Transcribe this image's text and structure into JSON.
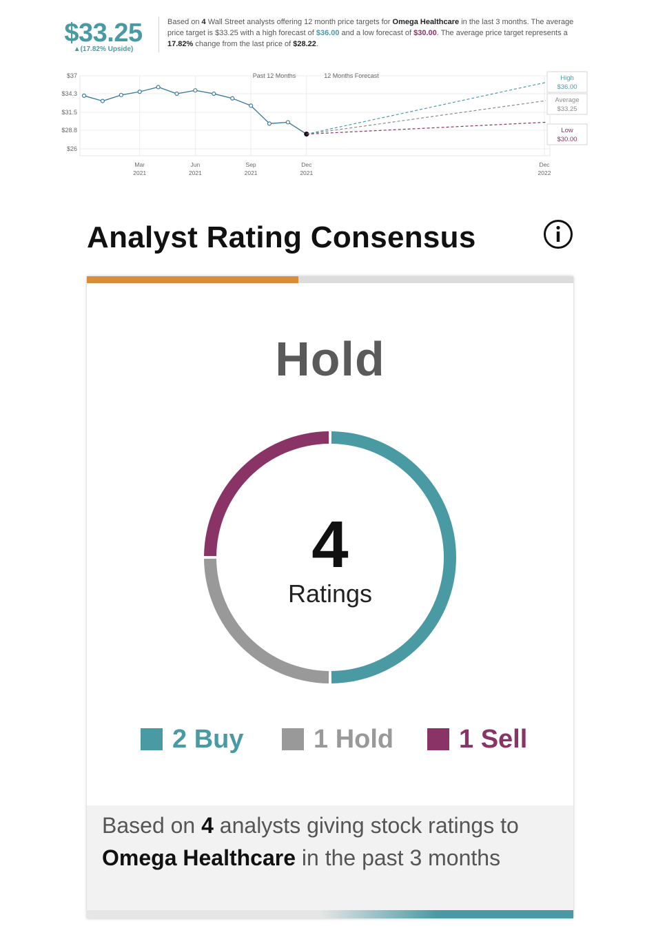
{
  "price_target": {
    "value": "$33.25",
    "upside": "▲(17.82% Upside)",
    "summary": {
      "p1": "Based on ",
      "analyst_count": "4",
      "p2": " Wall Street analysts offering 12 month price targets for ",
      "company": "Omega Healthcare",
      "p3": " in the last 3 months. The average price target is $33.25 with a high forecast of ",
      "high": "$36.00",
      "p4": " and a low forecast of ",
      "low": "$30.00",
      "p5": ". The average price target represents a ",
      "change": "17.82%",
      "p6": " change from the last price of ",
      "last_price": "$28.22",
      "p7": "."
    }
  },
  "chart_data": {
    "type": "line",
    "past_label": "Past 12 Months",
    "forecast_label": "12 Months Forecast",
    "y_ticks": [
      "$37",
      "$34.3",
      "$31.5",
      "$28.8",
      "$26"
    ],
    "ylim": [
      26,
      37
    ],
    "x_ticks": [
      {
        "month": "Mar",
        "year": "2021"
      },
      {
        "month": "Jun",
        "year": "2021"
      },
      {
        "month": "Sep",
        "year": "2021"
      },
      {
        "month": "Dec",
        "year": "2021"
      },
      {
        "month": "Dec",
        "year": "2022"
      }
    ],
    "history": [
      {
        "x": "2020-12",
        "y": 34.0
      },
      {
        "x": "2021-01",
        "y": 33.2
      },
      {
        "x": "2021-02",
        "y": 34.1
      },
      {
        "x": "2021-03",
        "y": 34.6
      },
      {
        "x": "2021-04",
        "y": 35.3
      },
      {
        "x": "2021-05",
        "y": 34.3
      },
      {
        "x": "2021-06",
        "y": 34.8
      },
      {
        "x": "2021-07",
        "y": 34.3
      },
      {
        "x": "2021-08",
        "y": 33.6
      },
      {
        "x": "2021-09",
        "y": 32.5
      },
      {
        "x": "2021-10",
        "y": 29.8
      },
      {
        "x": "2021-11",
        "y": 30.0
      },
      {
        "x": "2021-12",
        "y": 28.22
      }
    ],
    "forecast": [
      {
        "name": "High",
        "value_label": "$36.00",
        "y": 36.0,
        "color": "#4a9aa3"
      },
      {
        "name": "Average",
        "value_label": "$33.25",
        "y": 33.25,
        "color": "#8a8a8a"
      },
      {
        "name": "Low",
        "value_label": "$30.00",
        "y": 30.0,
        "color": "#8a3366"
      }
    ],
    "forecast_x": "2022-12",
    "line_color": "#3d7d9a"
  },
  "rating": {
    "title": "Analyst Rating Consensus",
    "consensus": "Hold",
    "total": "4",
    "total_label": "Ratings",
    "consensus_bar_fraction": 0.435,
    "segments": [
      {
        "label": "Buy",
        "count": "2",
        "value": 2,
        "color": "#4a9aa3"
      },
      {
        "label": "Hold",
        "count": "1",
        "value": 1,
        "color": "#999999"
      },
      {
        "label": "Sell",
        "count": "1",
        "value": 1,
        "color": "#8a3366"
      }
    ],
    "legend": {
      "buy": "2 Buy",
      "hold": "1 Hold",
      "sell": "1 Sell"
    },
    "footer": {
      "p1": "Based on ",
      "count": "4",
      "p2": " analysts giving stock ratings to ",
      "company": "Omega Healthcare",
      "p3": " in the past 3 months"
    }
  },
  "colors": {
    "accent_teal": "#4a9aa3",
    "sell_plum": "#8a3366",
    "hold_gray": "#999999",
    "consensus_orange": "#d98c3a"
  },
  "icons": {
    "info": "info-circle-icon"
  }
}
